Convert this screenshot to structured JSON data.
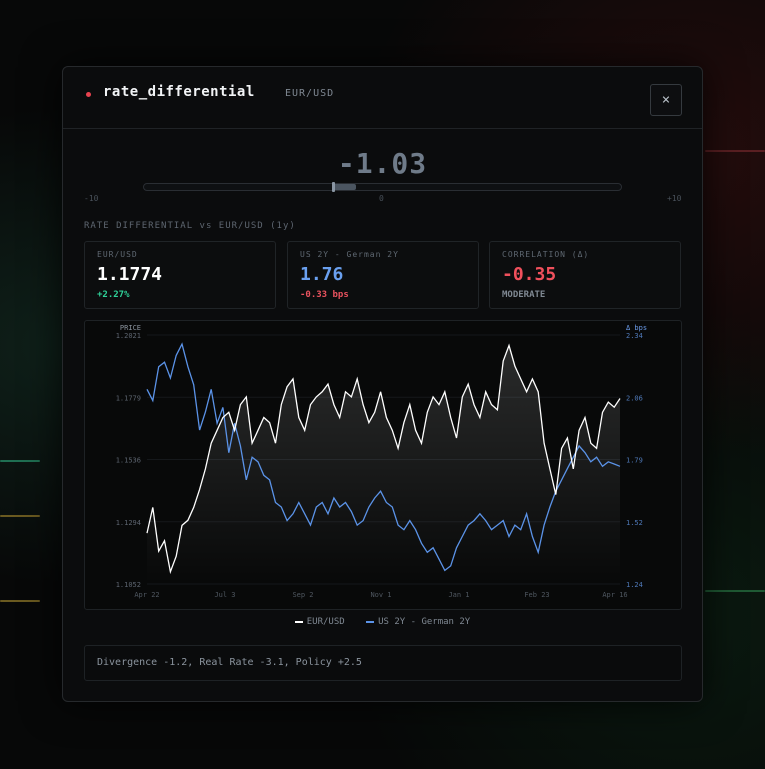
{
  "modal": {
    "title": "rate_differential",
    "subtitle": "EUR/USD",
    "close_label": "×"
  },
  "gauge": {
    "value_text": "-1.03",
    "value": -1.03,
    "min_label": "-10",
    "mid_label": "0",
    "max_label": "+10"
  },
  "section_title": "RATE DIFFERENTIAL vs EUR/USD (1y)",
  "cards": [
    {
      "label": "EUR/USD",
      "value": "1.1774",
      "sub": "+2.27%",
      "value_color": "#ffffff",
      "sub_color": "#2fd39a"
    },
    {
      "label": "US 2Y - German 2Y",
      "value": "1.76",
      "sub": "-0.33 bps",
      "value_color": "#6aa0f0",
      "sub_color": "#e8525e"
    },
    {
      "label": "CORRELATION (Δ)",
      "value": "-0.35",
      "sub": "MODERATE",
      "value_color": "#f0505c",
      "sub_color": "#7f8892"
    }
  ],
  "chart_data": {
    "type": "line",
    "left_axis_title": "PRICE",
    "right_axis_title": "Δ bps",
    "left_ticks": [
      "1.2021",
      "1.1779",
      "1.1536",
      "1.1294",
      "1.1052"
    ],
    "right_ticks": [
      "2.34",
      "2.06",
      "1.79",
      "1.52",
      "1.24"
    ],
    "ylim_left": [
      1.1052,
      1.2021
    ],
    "ylim_right": [
      1.24,
      2.34
    ],
    "x_ticks": [
      "Apr 22",
      "Jul 3",
      "Sep 2",
      "Nov 1",
      "Jan 1",
      "Feb 23",
      "Apr 16"
    ],
    "series": [
      {
        "name": "EUR/USD",
        "color": "#ffffff",
        "axis": "left",
        "values": [
          1.125,
          1.135,
          1.118,
          1.122,
          1.11,
          1.116,
          1.128,
          1.13,
          1.135,
          1.142,
          1.15,
          1.16,
          1.165,
          1.17,
          1.172,
          1.165,
          1.175,
          1.178,
          1.16,
          1.165,
          1.17,
          1.168,
          1.16,
          1.175,
          1.182,
          1.185,
          1.17,
          1.165,
          1.175,
          1.178,
          1.18,
          1.183,
          1.175,
          1.17,
          1.18,
          1.178,
          1.185,
          1.175,
          1.168,
          1.172,
          1.18,
          1.17,
          1.165,
          1.158,
          1.168,
          1.175,
          1.165,
          1.16,
          1.172,
          1.178,
          1.175,
          1.18,
          1.17,
          1.162,
          1.178,
          1.183,
          1.175,
          1.17,
          1.18,
          1.175,
          1.173,
          1.192,
          1.198,
          1.19,
          1.185,
          1.18,
          1.185,
          1.18,
          1.16,
          1.15,
          1.14,
          1.158,
          1.162,
          1.15,
          1.165,
          1.17,
          1.16,
          1.158,
          1.172,
          1.176,
          1.174,
          1.1774
        ]
      },
      {
        "name": "US 2Y - German 2Y",
        "color": "#5b93e8",
        "axis": "right",
        "values": [
          2.1,
          2.05,
          2.2,
          2.22,
          2.15,
          2.25,
          2.3,
          2.2,
          2.12,
          1.92,
          2.0,
          2.1,
          1.95,
          2.02,
          1.82,
          1.95,
          1.85,
          1.7,
          1.8,
          1.78,
          1.72,
          1.7,
          1.6,
          1.58,
          1.52,
          1.55,
          1.6,
          1.55,
          1.5,
          1.58,
          1.6,
          1.55,
          1.62,
          1.58,
          1.6,
          1.56,
          1.5,
          1.52,
          1.58,
          1.62,
          1.65,
          1.6,
          1.58,
          1.5,
          1.48,
          1.52,
          1.48,
          1.42,
          1.38,
          1.4,
          1.35,
          1.3,
          1.32,
          1.4,
          1.45,
          1.5,
          1.52,
          1.55,
          1.52,
          1.48,
          1.5,
          1.52,
          1.45,
          1.5,
          1.48,
          1.55,
          1.45,
          1.38,
          1.5,
          1.58,
          1.65,
          1.7,
          1.75,
          1.8,
          1.85,
          1.82,
          1.78,
          1.8,
          1.76,
          1.78,
          1.77,
          1.76
        ]
      }
    ]
  },
  "note": "Divergence -1.2, Real Rate -3.1, Policy +2.5"
}
